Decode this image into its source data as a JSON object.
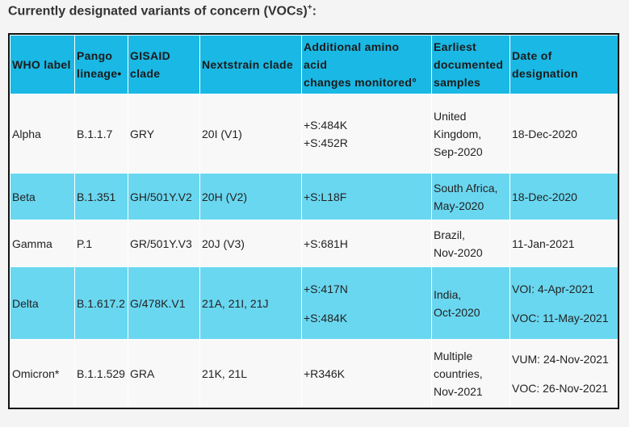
{
  "heading": {
    "text": "Currently designated variants of concern (VOCs)",
    "sup": "+",
    "suffix": ":"
  },
  "table": {
    "headers": [
      {
        "lines": [
          "WHO label"
        ]
      },
      {
        "lines": [
          "Pango",
          "lineage•"
        ]
      },
      {
        "lines": [
          "GISAID",
          "clade"
        ]
      },
      {
        "lines": [
          "Nextstrain clade"
        ]
      },
      {
        "lines": [
          "Additional amino",
          "acid",
          "changes monitored°"
        ]
      },
      {
        "lines": [
          "Earliest",
          "documented",
          "samples"
        ]
      },
      {
        "lines": [
          "Date of",
          "designation"
        ]
      }
    ],
    "rows": [
      {
        "who": "Alpha",
        "pango": "B.1.1.7",
        "gisaid": "GRY",
        "nextstrain": "20I (V1)",
        "amino": [
          "+S:484K",
          "+S:452R"
        ],
        "earliest": [
          "United",
          "Kingdom,",
          "Sep-2020"
        ],
        "date": [
          "18-Dec-2020"
        ]
      },
      {
        "who": "Beta",
        "pango": "B.1.351",
        "gisaid": "GH/501Y.V2",
        "nextstrain": "20H (V2)",
        "amino": [
          "+S:L18F"
        ],
        "earliest": [
          "South Africa,",
          "May-2020"
        ],
        "date": [
          "18-Dec-2020"
        ]
      },
      {
        "who": "Gamma",
        "pango": "P.1",
        "gisaid": "GR/501Y.V3",
        "nextstrain": "20J (V3)",
        "amino": [
          "+S:681H"
        ],
        "earliest": [
          "Brazil,",
          "Nov-2020"
        ],
        "date": [
          "11-Jan-2021"
        ]
      },
      {
        "who": "Delta",
        "pango": "B.1.617.2",
        "gisaid": "G/478K.V1",
        "nextstrain": "21A, 21I, 21J",
        "amino": [
          "+S:417N",
          "+S:484K"
        ],
        "earliest": [
          "India,",
          "Oct-2020"
        ],
        "date": [
          "VOI: 4-Apr-2021",
          "VOC: 11-May-2021"
        ]
      },
      {
        "who": "Omicron*",
        "pango": "B.1.1.529",
        "gisaid": "GRA",
        "nextstrain": "21K, 21L",
        "amino": [
          "+R346K"
        ],
        "earliest": [
          "Multiple",
          "countries,",
          "Nov-2021"
        ],
        "date": [
          "VUM: 24-Nov-2021",
          "VOC: 26-Nov-2021"
        ]
      }
    ]
  },
  "colors": {
    "header": "#1ab8e4",
    "row_alt": "#6ad7f0",
    "row_plain": "#f8f8f8"
  }
}
